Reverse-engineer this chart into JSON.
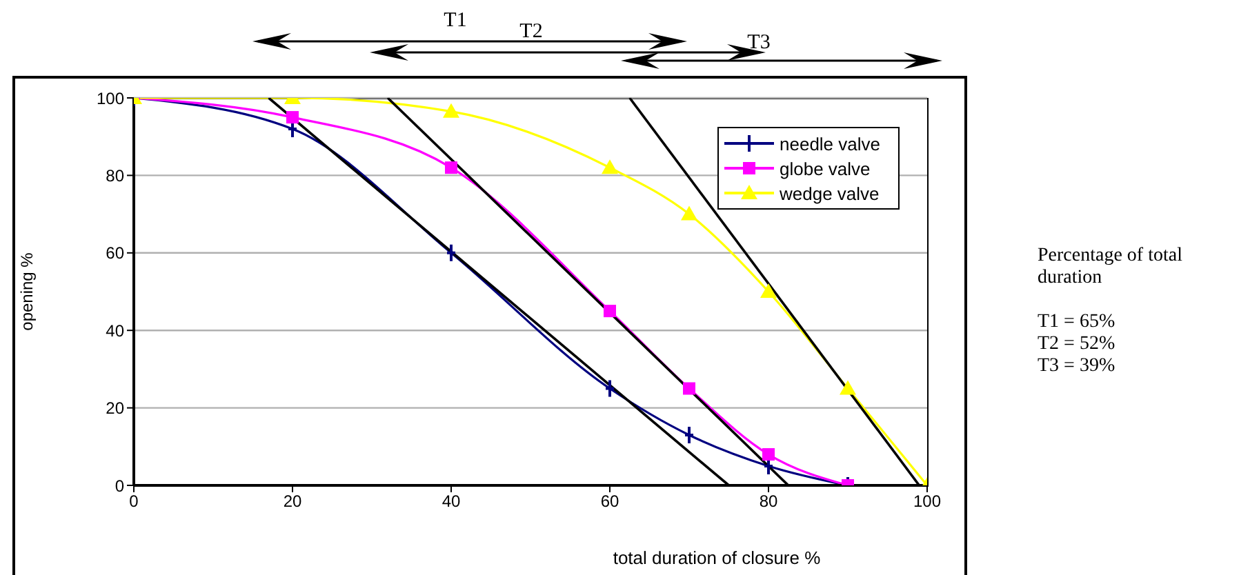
{
  "chart_data": {
    "type": "line",
    "xlabel": "total duration of closure %",
    "ylabel": "opening %",
    "xlim": [
      0,
      100
    ],
    "xticks": [
      0,
      20,
      40,
      60,
      80,
      100
    ],
    "ylim": [
      0,
      100
    ],
    "yticks": [
      0,
      20,
      40,
      60,
      80,
      100
    ],
    "grid": "y",
    "legend": "top right",
    "series": [
      {
        "name": "needle valve",
        "color": "#000080",
        "marker": "cross",
        "x": [
          0,
          20,
          40,
          60,
          70,
          80,
          90
        ],
        "values": [
          100,
          92,
          60,
          25,
          13,
          5,
          0
        ]
      },
      {
        "name": "globe valve",
        "color": "#ff00ff",
        "marker": "square",
        "x": [
          0,
          20,
          40,
          60,
          70,
          80,
          90
        ],
        "values": [
          100,
          95,
          82,
          45,
          25,
          8,
          0
        ]
      },
      {
        "name": "wedge valve",
        "color": "#ffff00",
        "marker": "triangle",
        "x": [
          0,
          20,
          40,
          60,
          70,
          80,
          90,
          100
        ],
        "values": [
          100,
          100,
          96.5,
          82,
          70,
          50,
          25,
          0
        ]
      },
      {
        "color": "#000000",
        "marker": "none",
        "x": [
          17,
          75
        ],
        "values": [
          100,
          0
        ]
      },
      {
        "color": "#000000",
        "marker": "none",
        "x": [
          32,
          82.5
        ],
        "values": [
          100,
          0
        ]
      },
      {
        "color": "#000000",
        "marker": "none",
        "x": [
          62.5,
          99
        ],
        "values": [
          100,
          0
        ]
      }
    ],
    "annotations": [
      "T1",
      "T2",
      "T3",
      "Percentage of total duration",
      "T1 = 65%",
      "T2 = 52%",
      "T3 = 39%"
    ]
  }
}
